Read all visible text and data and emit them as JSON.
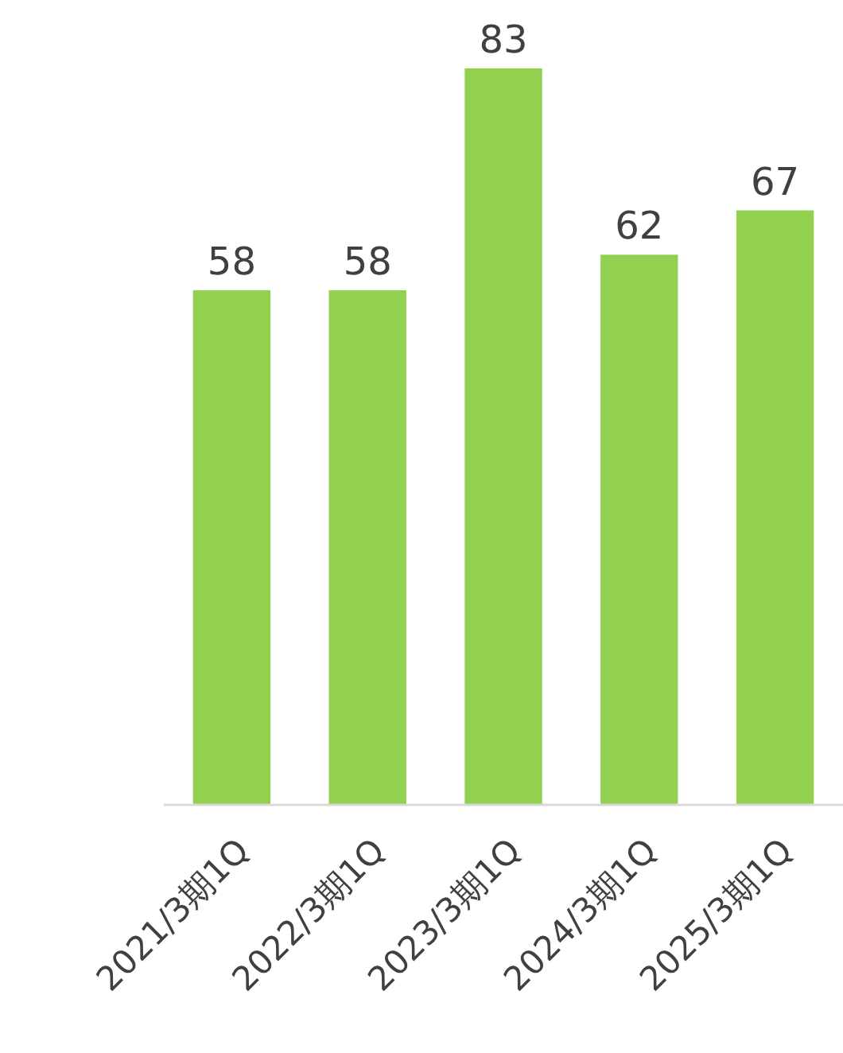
{
  "chart_data": {
    "type": "bar",
    "categories": [
      "2021/3期1Q",
      "2022/3期1Q",
      "2023/3期1Q",
      "2024/3期1Q",
      "2025/3期1Q"
    ],
    "values": [
      58,
      58,
      83,
      62,
      67
    ],
    "color": "#92d050",
    "data_labels": true
  }
}
